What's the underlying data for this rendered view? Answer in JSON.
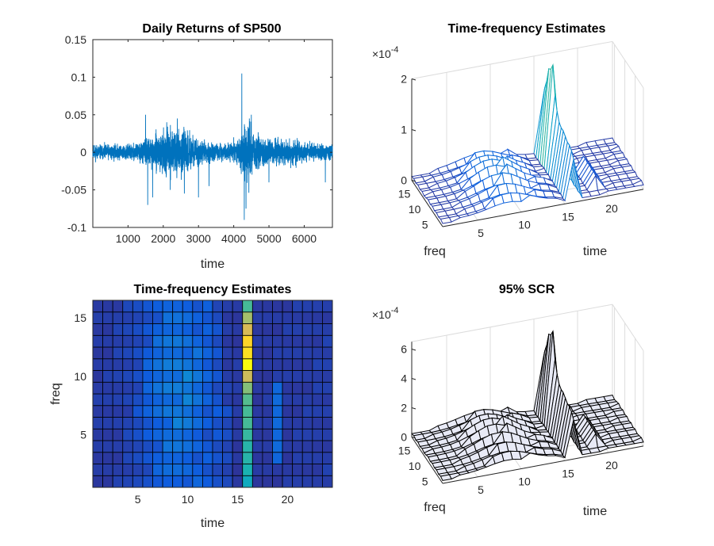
{
  "chart_data": [
    {
      "type": "line",
      "title": "Daily Returns of SP500",
      "xlabel": "time",
      "ylabel": "",
      "xlim": [
        1,
        6800
      ],
      "ylim": [
        -0.1,
        0.15
      ],
      "xticks": [
        1000,
        2000,
        3000,
        4000,
        5000,
        6000
      ],
      "xtick_labels": [
        "1000",
        "2000",
        "3000",
        "4000",
        "5000",
        "6000"
      ],
      "yticks": [
        -0.1,
        -0.05,
        0,
        0.05,
        0.1,
        0.15
      ],
      "ytick_labels": [
        "-0.1",
        "-0.05",
        "0",
        "0.05",
        "0.1",
        "0.15"
      ],
      "color": "#0072BD",
      "n_points": 6800,
      "events": [
        {
          "x": 1500,
          "value": 0.05
        },
        {
          "x": 1560,
          "value": -0.07
        },
        {
          "x": 1700,
          "value": -0.06
        },
        {
          "x": 2100,
          "value": 0.04
        },
        {
          "x": 2200,
          "value": -0.05
        },
        {
          "x": 2400,
          "value": 0.045
        },
        {
          "x": 2600,
          "value": -0.055
        },
        {
          "x": 3000,
          "value": -0.06
        },
        {
          "x": 3300,
          "value": -0.045
        },
        {
          "x": 4000,
          "value": 0.02
        },
        {
          "x": 4230,
          "value": 0.105
        },
        {
          "x": 4300,
          "value": -0.09
        },
        {
          "x": 4350,
          "value": -0.075
        },
        {
          "x": 4500,
          "value": 0.05
        },
        {
          "x": 5000,
          "value": -0.04
        },
        {
          "x": 6600,
          "value": -0.04
        }
      ]
    },
    {
      "type": "surface",
      "title": "Time-frequency Estimates",
      "xlabel": "time",
      "ylabel": "freq",
      "zlabel": "",
      "scale_label": "×10",
      "scale_exponent": "-4",
      "xticks": [
        5,
        10,
        15,
        20
      ],
      "xtick_labels": [
        "5",
        "10",
        "15",
        "20"
      ],
      "yticks": [
        5,
        10,
        15
      ],
      "ytick_labels": [
        "5",
        "10",
        "15"
      ],
      "zticks": [
        0,
        1,
        2
      ],
      "ztick_labels": [
        "0",
        "1",
        "2"
      ],
      "zlim": [
        0,
        2
      ],
      "face": "none",
      "colormap": "parula"
    },
    {
      "type": "heatmap",
      "title": "Time-frequency Estimates",
      "xlabel": "time",
      "ylabel": "freq",
      "xticks": [
        5,
        10,
        15,
        20
      ],
      "xtick_labels": [
        "5",
        "10",
        "15",
        "20"
      ],
      "yticks": [
        5,
        10,
        15
      ],
      "ytick_labels": [
        "5",
        "10",
        "15"
      ],
      "xlim": [
        0.5,
        24.5
      ],
      "ylim": [
        0.5,
        16.5
      ],
      "peak": {
        "time": 16,
        "freq": 11,
        "value": 2.1
      },
      "colormap": "parula"
    },
    {
      "type": "surface",
      "title": "95% SCR",
      "xlabel": "time",
      "ylabel": "freq",
      "zlabel": "",
      "scale_label": "×10",
      "scale_exponent": "-4",
      "xticks": [
        5,
        10,
        15,
        20
      ],
      "xtick_labels": [
        "5",
        "10",
        "15",
        "20"
      ],
      "yticks": [
        5,
        10,
        15
      ],
      "ytick_labels": [
        "5",
        "10",
        "15"
      ],
      "zticks": [
        0,
        2,
        4,
        6
      ],
      "ztick_labels": [
        "0",
        "2",
        "4",
        "6"
      ],
      "zlim": [
        0,
        6.5
      ],
      "face": "#e8eaf6",
      "edge": "#000000"
    }
  ]
}
